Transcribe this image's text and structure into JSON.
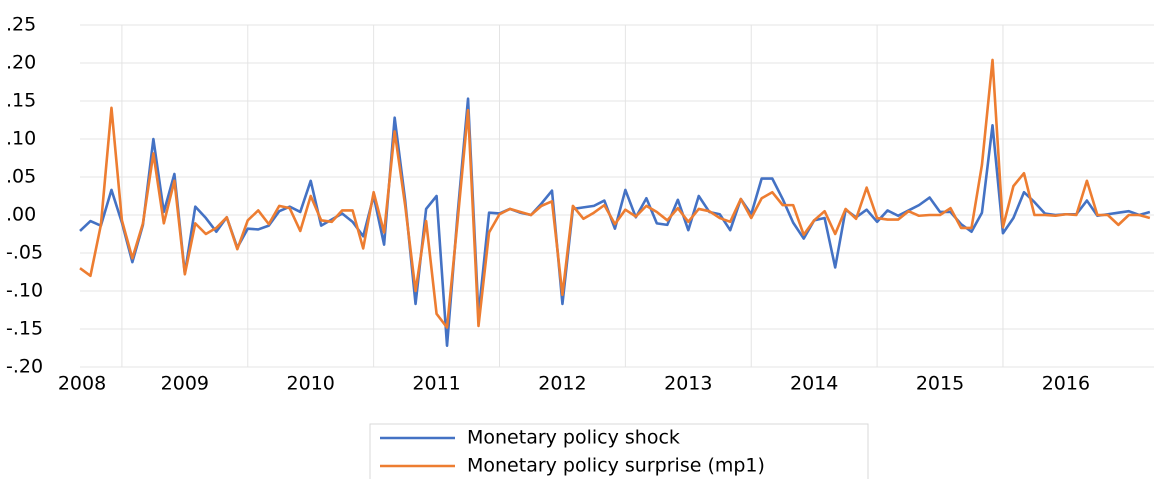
{
  "chart_data": {
    "type": "line",
    "x": [
      2008.667,
      2008.75,
      2008.833,
      2008.917,
      2009,
      2009.083,
      2009.167,
      2009.25,
      2009.333,
      2009.417,
      2009.5,
      2009.583,
      2009.667,
      2009.75,
      2009.833,
      2009.917,
      2010,
      2010.083,
      2010.167,
      2010.25,
      2010.333,
      2010.417,
      2010.5,
      2010.583,
      2010.667,
      2010.75,
      2010.833,
      2010.917,
      2011,
      2011.083,
      2011.167,
      2011.25,
      2011.333,
      2011.417,
      2011.5,
      2011.583,
      2011.667,
      2011.75,
      2011.833,
      2011.917,
      2012,
      2012.083,
      2012.167,
      2012.25,
      2012.333,
      2012.417,
      2012.5,
      2012.583,
      2012.667,
      2012.75,
      2012.833,
      2012.917,
      2013,
      2013.083,
      2013.167,
      2013.25,
      2013.333,
      2013.417,
      2013.5,
      2013.583,
      2013.667,
      2013.75,
      2013.833,
      2013.917,
      2014,
      2014.083,
      2014.167,
      2014.25,
      2014.333,
      2014.417,
      2014.5,
      2014.583,
      2014.667,
      2014.75,
      2014.833,
      2014.917,
      2015,
      2015.083,
      2015.167,
      2015.25,
      2015.333,
      2015.417,
      2015.5,
      2015.583,
      2015.667,
      2015.75,
      2015.833,
      2015.917,
      2016,
      2016.083,
      2016.167,
      2016.25,
      2016.333,
      2016.417,
      2016.5,
      2016.583,
      2016.667,
      2016.75,
      2016.833,
      2016.917,
      2017,
      2017.083,
      2017.167
    ],
    "series": [
      {
        "name": "Monetary policy shock",
        "color": "#4472c4",
        "values": [
          -0.021,
          -0.008,
          -0.014,
          0.033,
          -0.01,
          -0.062,
          -0.013,
          0.1,
          0.004,
          0.054,
          -0.077,
          0.011,
          -0.004,
          -0.022,
          -0.003,
          -0.043,
          -0.018,
          -0.019,
          -0.014,
          0.005,
          0.011,
          0.004,
          0.045,
          -0.014,
          -0.006,
          0.002,
          -0.009,
          -0.028,
          0.025,
          -0.039,
          0.128,
          0.02,
          -0.117,
          0.008,
          0.025,
          -0.172,
          0.001,
          0.153,
          -0.132,
          0.003,
          0.002,
          0.008,
          0.003,
          0,
          0.015,
          0.032,
          -0.117,
          0.008,
          0.01,
          0.012,
          0.019,
          -0.018,
          0.033,
          -0.003,
          0.022,
          -0.011,
          -0.013,
          0.02,
          -0.02,
          0.025,
          0.004,
          0.001,
          -0.02,
          0.021,
          0.001,
          0.048,
          0.048,
          0.021,
          -0.01,
          -0.031,
          -0.007,
          -0.004,
          -0.069,
          0.007,
          -0.003,
          0.007,
          -0.009,
          0.006,
          -0.001,
          0.006,
          0.013,
          0.023,
          0.004,
          0.004,
          -0.012,
          -0.022,
          0.003,
          0.118,
          -0.024,
          -0.004,
          0.03,
          0.017,
          0.002,
          0,
          0.001,
          0.001,
          0.019,
          -0.001,
          0.001,
          0.003,
          0.005,
          0,
          0.004
        ]
      },
      {
        "name": "Monetary policy surprise (mp1)",
        "color": "#ed7d31",
        "values": [
          -0.07,
          -0.08,
          -0.013,
          0.141,
          -0.007,
          -0.057,
          -0.011,
          0.081,
          -0.011,
          0.045,
          -0.078,
          -0.011,
          -0.025,
          -0.017,
          -0.003,
          -0.045,
          -0.007,
          0.006,
          -0.012,
          0.012,
          0.009,
          -0.021,
          0.025,
          -0.007,
          -0.009,
          0.006,
          0.006,
          -0.044,
          0.03,
          -0.023,
          0.11,
          0.013,
          -0.1,
          -0.008,
          -0.13,
          -0.148,
          -0.008,
          0.138,
          -0.146,
          -0.023,
          0.001,
          0.008,
          0.004,
          0,
          0.012,
          0.018,
          -0.105,
          0.012,
          -0.005,
          0.003,
          0.013,
          -0.012,
          0.007,
          -0.002,
          0.012,
          0.004,
          -0.007,
          0.009,
          -0.009,
          0.008,
          0.005,
          -0.004,
          -0.009,
          0.021,
          -0.004,
          0.022,
          0.03,
          0.013,
          0.013,
          -0.026,
          -0.007,
          0.005,
          -0.025,
          0.008,
          -0.005,
          0.036,
          -0.004,
          -0.006,
          -0.006,
          0.005,
          -0.001,
          0,
          0,
          0.009,
          -0.017,
          -0.017,
          0.066,
          0.204,
          -0.016,
          0.038,
          0.055,
          0,
          0,
          -0.001,
          0.001,
          0,
          0.045,
          0,
          0,
          -0.013,
          0,
          0,
          -0.004
        ]
      }
    ],
    "xlim": [
      2008.667,
      2017.2
    ],
    "xticks": [
      2008,
      2009,
      2010,
      2011,
      2012,
      2013,
      2014,
      2015,
      2016
    ],
    "ylim": [
      -0.2,
      0.25
    ],
    "yticks": [
      {
        "value": 0.25,
        "label": ".25"
      },
      {
        "value": 0.2,
        "label": ".20"
      },
      {
        "value": 0.15,
        "label": ".15"
      },
      {
        "value": 0.1,
        "label": ".10"
      },
      {
        "value": 0.05,
        "label": ".05"
      },
      {
        "value": 0,
        "label": ".00"
      },
      {
        "value": -0.05,
        "label": "-.05"
      },
      {
        "value": -0.1,
        "label": "-.10"
      },
      {
        "value": -0.15,
        "label": "-.15"
      },
      {
        "value": -0.2,
        "label": "-.20"
      }
    ],
    "grid": true,
    "legend": "bottom"
  }
}
